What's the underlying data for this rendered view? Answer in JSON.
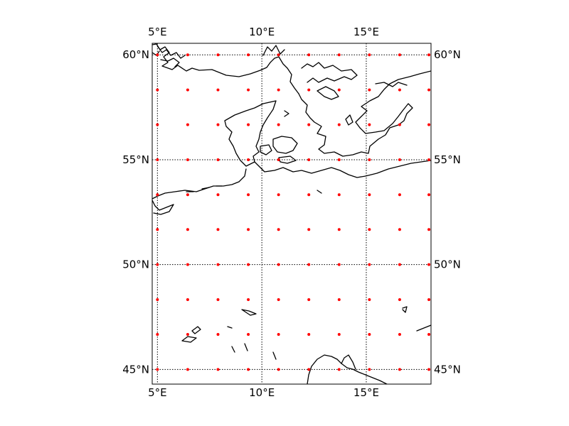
{
  "map": {
    "projection": "cylindrical",
    "extent": {
      "lon_min": 4.75,
      "lon_max": 18.1,
      "lat_min": 44.3,
      "lat_max": 60.55
    },
    "grid_style": "dotted",
    "point_color": "#ff0000",
    "coastline_color": "#000000",
    "meridians": [
      {
        "lon": 5,
        "label": "5°E"
      },
      {
        "lon": 10,
        "label": "10°E"
      },
      {
        "lon": 15,
        "label": "15°E"
      }
    ],
    "parallels": [
      {
        "lat": 45,
        "label": "45°N"
      },
      {
        "lat": 50,
        "label": "50°N"
      },
      {
        "lat": 55,
        "label": "55°N"
      },
      {
        "lat": 60,
        "label": "60°N"
      }
    ],
    "grid_points": {
      "lons": [
        5.0,
        6.45,
        7.9,
        9.35,
        10.8,
        12.25,
        13.7,
        15.15,
        16.6,
        18.0
      ],
      "lats": [
        45.0,
        46.67,
        48.33,
        50.0,
        51.67,
        53.33,
        55.0,
        56.67,
        58.33,
        60.0
      ]
    }
  }
}
